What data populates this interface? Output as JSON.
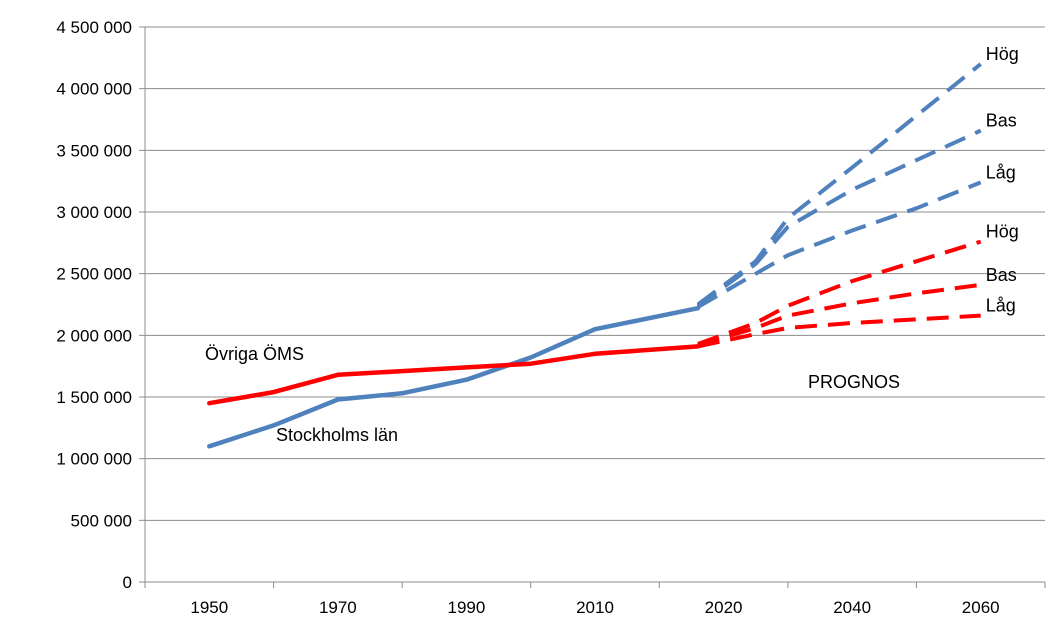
{
  "chart_data": {
    "type": "line",
    "title": "",
    "xlabel": "",
    "ylabel": "",
    "xlim": [
      1945,
      2065
    ],
    "ylim": [
      0,
      4500000
    ],
    "x_ticks": [
      "1950",
      "1970",
      "1990",
      "2010",
      "2020",
      "2040",
      "2060"
    ],
    "y_ticks": [
      "0",
      "500 000",
      "1 000 000",
      "1 500 000",
      "2 000 000",
      "2 500 000",
      "3 000 000",
      "3 500 000",
      "4 000 000",
      "4 500 000"
    ],
    "y_tick_values": [
      0,
      500000,
      1000000,
      1500000,
      2000000,
      2500000,
      3000000,
      3500000,
      4000000,
      4500000
    ],
    "grid": "horizontal",
    "colors": {
      "stockholm": "#4F81BD",
      "ovriga": "#FF0000"
    },
    "series": [
      {
        "name": "Stockholms län",
        "color": "#4F81BD",
        "dashed": false,
        "x": [
          1950,
          1960,
          1970,
          1980,
          1990,
          2000,
          2010,
          2018
        ],
        "y": [
          1100000,
          1270000,
          1480000,
          1530000,
          1640000,
          1820000,
          2050000,
          2220000
        ]
      },
      {
        "name": "Övriga ÖMS",
        "color": "#FF0000",
        "dashed": false,
        "x": [
          1950,
          1960,
          1970,
          1980,
          1990,
          2000,
          2010,
          2018
        ],
        "y": [
          1450000,
          1540000,
          1680000,
          1710000,
          1740000,
          1770000,
          1850000,
          1910000
        ]
      },
      {
        "name": "Hög",
        "color": "#4F81BD",
        "dashed": true,
        "x": [
          2018,
          2025,
          2030,
          2040,
          2050,
          2060
        ],
        "y": [
          2250000,
          2600000,
          2950000,
          3360000,
          3780000,
          4200000
        ]
      },
      {
        "name": "Bas",
        "color": "#4F81BD",
        "dashed": true,
        "x": [
          2018,
          2025,
          2030,
          2040,
          2050,
          2060
        ],
        "y": [
          2240000,
          2580000,
          2880000,
          3180000,
          3420000,
          3660000
        ]
      },
      {
        "name": "Låg",
        "color": "#4F81BD",
        "dashed": true,
        "x": [
          2018,
          2025,
          2030,
          2040,
          2050,
          2060
        ],
        "y": [
          2230000,
          2500000,
          2650000,
          2850000,
          3030000,
          3240000
        ]
      },
      {
        "name": "Hög",
        "color": "#FF0000",
        "dashed": true,
        "x": [
          2018,
          2025,
          2030,
          2040,
          2050,
          2060
        ],
        "y": [
          1930000,
          2100000,
          2240000,
          2440000,
          2600000,
          2760000
        ]
      },
      {
        "name": "Bas",
        "color": "#FF0000",
        "dashed": true,
        "x": [
          2018,
          2025,
          2030,
          2040,
          2050,
          2060
        ],
        "y": [
          1920000,
          2060000,
          2160000,
          2260000,
          2340000,
          2410000
        ]
      },
      {
        "name": "Låg",
        "color": "#FF0000",
        "dashed": true,
        "x": [
          2018,
          2025,
          2030,
          2040,
          2050,
          2060
        ],
        "y": [
          1910000,
          2010000,
          2060000,
          2100000,
          2130000,
          2160000
        ]
      }
    ],
    "annotations": {
      "ovriga": "Övriga ÖMS",
      "stockholm": "Stockholms län",
      "prognos": "PROGNOS"
    }
  }
}
